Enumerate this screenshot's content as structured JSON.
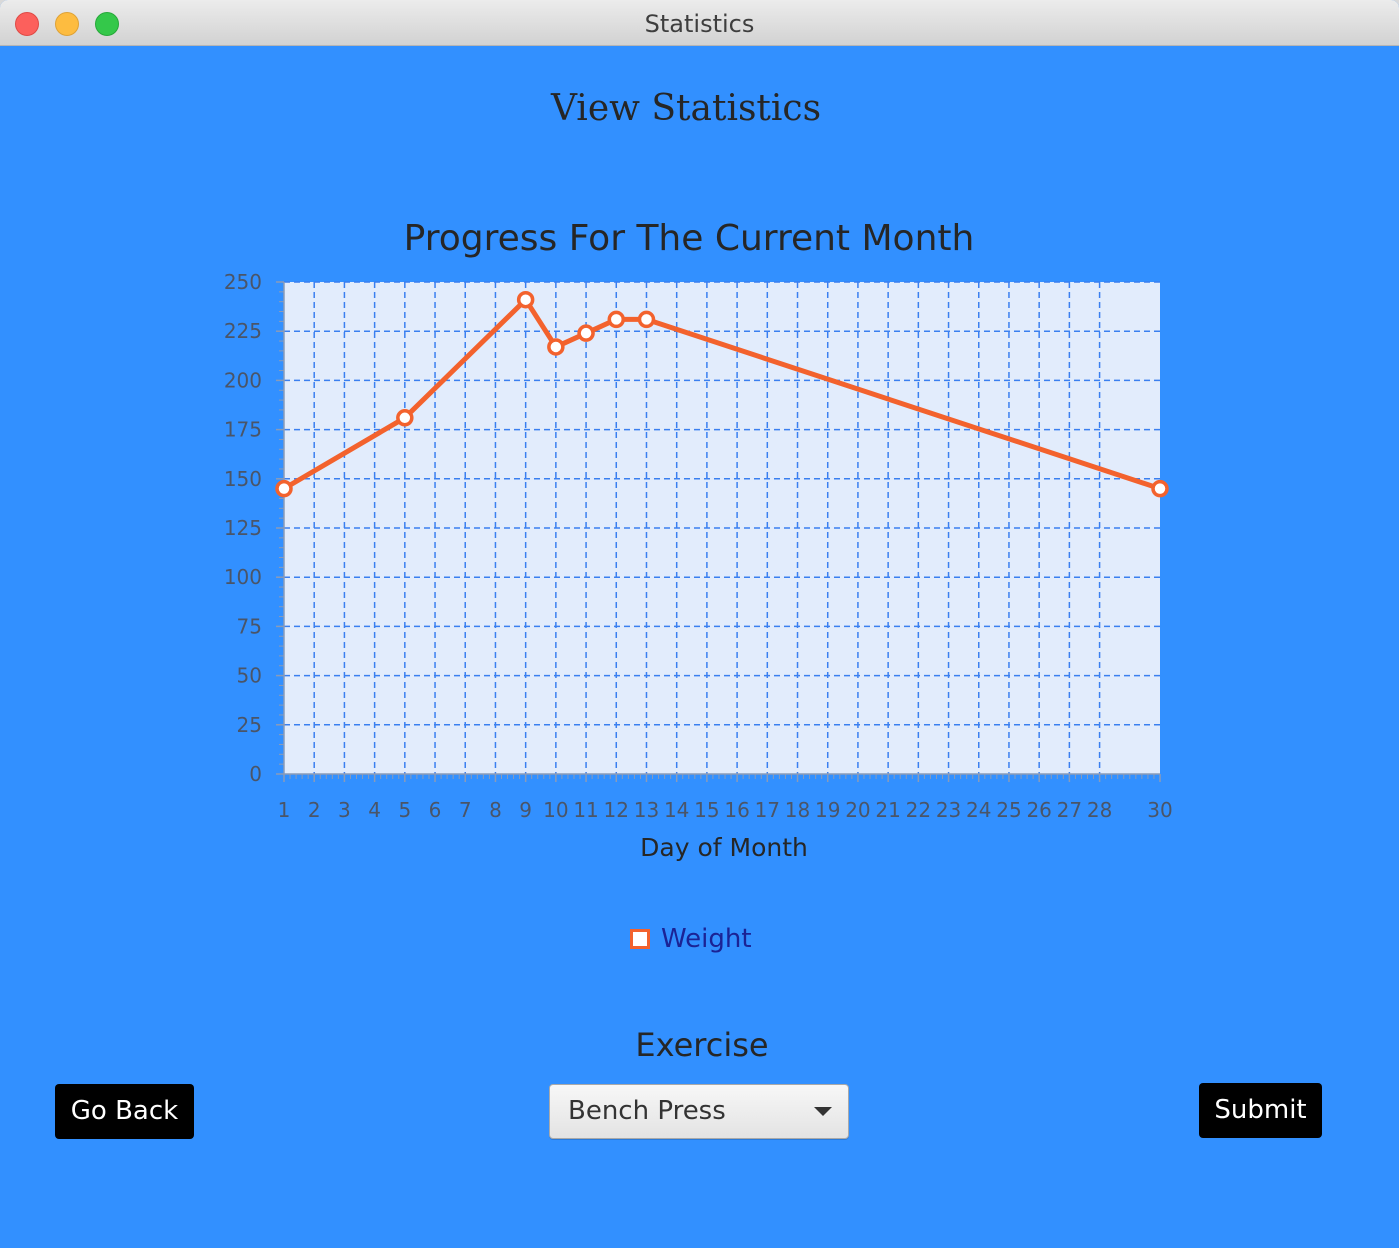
{
  "window": {
    "title": "Statistics"
  },
  "page": {
    "heading": "View Statistics"
  },
  "colors": {
    "background": "#3290ff",
    "plot_background": "#e2ecfc",
    "grid": "#3a7ff0",
    "series": "#f3622d",
    "legend_text": "#1b2395"
  },
  "chart_data": {
    "type": "line",
    "title": "Progress For The Current Month",
    "xlabel": "Day of Month",
    "ylabel": "",
    "xlim": [
      1,
      30
    ],
    "ylim": [
      0,
      250
    ],
    "x_ticks": [
      "1",
      "2",
      "3",
      "4",
      "5",
      "6",
      "7",
      "8",
      "9",
      "10",
      "11",
      "12",
      "13",
      "14",
      "15",
      "16",
      "17",
      "18",
      "19",
      "20",
      "21",
      "22",
      "23",
      "24",
      "25",
      "26",
      "27",
      "28",
      "30"
    ],
    "y_ticks": [
      "0",
      "25",
      "50",
      "75",
      "100",
      "125",
      "150",
      "175",
      "200",
      "225",
      "250"
    ],
    "grid": true,
    "legend_position": "bottom",
    "series": [
      {
        "name": "Weight",
        "x": [
          1,
          5,
          9,
          10,
          11,
          12,
          13,
          30
        ],
        "y": [
          145,
          181,
          241,
          217,
          224,
          231,
          231,
          145
        ]
      }
    ]
  },
  "legend": {
    "weight_label": "Weight"
  },
  "controls": {
    "exercise_label": "Exercise",
    "exercise_selected": "Bench Press",
    "go_back_label": "Go Back",
    "submit_label": "Submit"
  }
}
